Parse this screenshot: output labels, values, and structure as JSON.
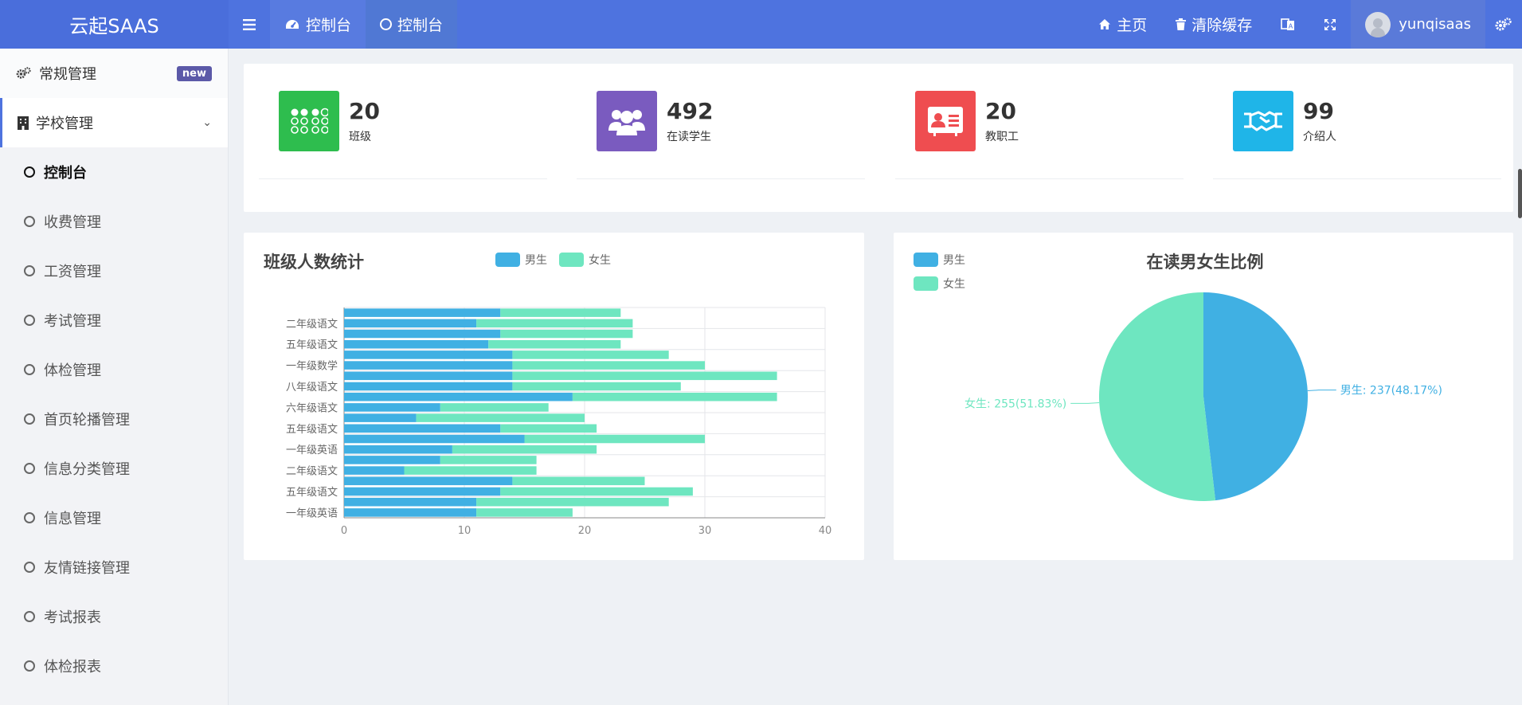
{
  "app": {
    "title": "云起SAAS"
  },
  "topbar": {
    "tabs": [
      {
        "label": "控制台"
      },
      {
        "label": "控制台"
      }
    ],
    "home_label": "主页",
    "clear_cache_label": "清除缓存",
    "username": "yunqisaas",
    "icons": [
      "menu-icon",
      "dashboard-icon",
      "circle-icon",
      "home-icon",
      "trash-icon",
      "translate-icon",
      "fullscreen-icon",
      "avatar",
      "gears-icon"
    ]
  },
  "sidebar": {
    "group1": {
      "label": "常规管理",
      "badge": "new"
    },
    "group2": {
      "label": "学校管理"
    },
    "items": [
      {
        "label": "控制台",
        "current": true
      },
      {
        "label": "收费管理"
      },
      {
        "label": "工资管理"
      },
      {
        "label": "考试管理"
      },
      {
        "label": "体检管理"
      },
      {
        "label": "首页轮播管理"
      },
      {
        "label": "信息分类管理"
      },
      {
        "label": "信息管理"
      },
      {
        "label": "友情链接管理"
      },
      {
        "label": "考试报表"
      },
      {
        "label": "体检报表"
      }
    ]
  },
  "stats": [
    {
      "value": "20",
      "label": "班级",
      "color": "#2ebd4e",
      "icon": "grid-dots-icon"
    },
    {
      "value": "492",
      "label": "在读学生",
      "color": "#7a5bbf",
      "icon": "users-icon"
    },
    {
      "value": "20",
      "label": "教职工",
      "color": "#ef4d50",
      "icon": "id-card-icon"
    },
    {
      "value": "99",
      "label": "介绍人",
      "color": "#1fb5e8",
      "icon": "handshake-icon"
    }
  ],
  "colors": {
    "male": "#40b0e3",
    "female": "#6ee6c0",
    "accent": "#4e73df"
  },
  "chart_data": [
    {
      "type": "bar",
      "orientation": "horizontal",
      "stacked": true,
      "title": "班级人数统计",
      "categories": [
        "一年级英语",
        "",
        "五年级语文",
        "",
        "二年级语文",
        "",
        "一年级英语",
        "",
        "五年级语文",
        "",
        "六年级语文",
        "",
        "八年级语文",
        "",
        "一年级数学",
        "",
        "五年级语文",
        "",
        "二年级语文",
        ""
      ],
      "series": [
        {
          "name": "男生",
          "values": [
            11,
            11,
            13,
            14,
            5,
            8,
            9,
            15,
            13,
            6,
            8,
            19,
            14,
            14,
            14,
            14,
            12,
            13,
            11,
            13
          ]
        },
        {
          "name": "女生",
          "values": [
            8,
            16,
            16,
            11,
            11,
            8,
            12,
            15,
            8,
            14,
            9,
            17,
            14,
            22,
            16,
            13,
            11,
            11,
            13,
            10
          ]
        }
      ],
      "xlim": [
        0,
        40
      ],
      "xticks": [
        0,
        10,
        20,
        30,
        40
      ],
      "legend": "top",
      "grid": true
    },
    {
      "type": "pie",
      "title": "在读男女生比例",
      "slices": [
        {
          "name": "男生",
          "value": 237,
          "label": "男生: 237(48.17%)"
        },
        {
          "name": "女生",
          "value": 255,
          "label": "女生: 255(51.83%)"
        }
      ],
      "legend": "top-left"
    }
  ]
}
